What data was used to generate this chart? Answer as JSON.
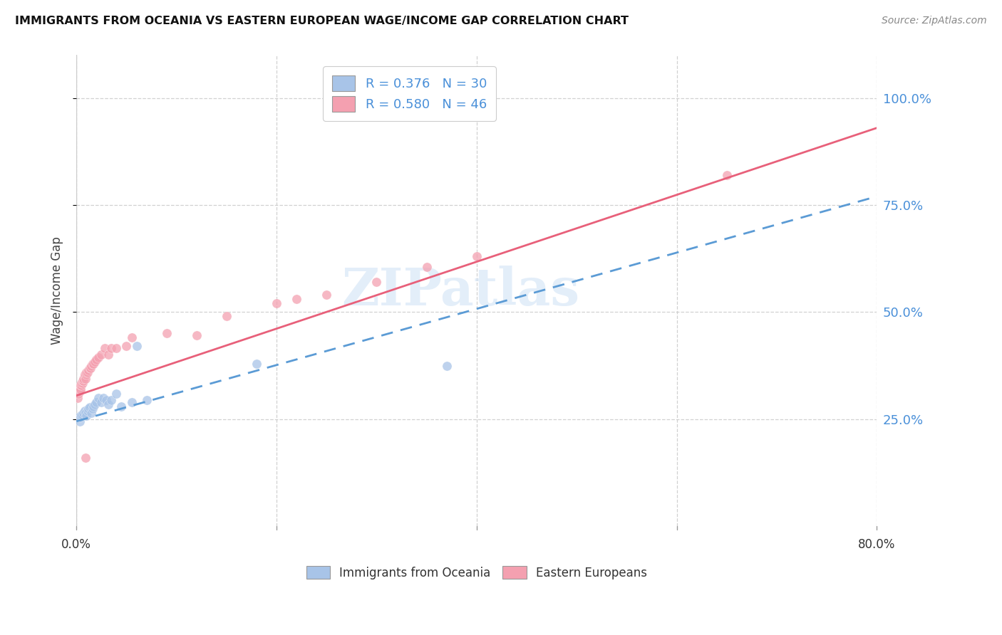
{
  "title": "IMMIGRANTS FROM OCEANIA VS EASTERN EUROPEAN WAGE/INCOME GAP CORRELATION CHART",
  "source": "Source: ZipAtlas.com",
  "ylabel": "Wage/Income Gap",
  "yticks": [
    0.25,
    0.5,
    0.75,
    1.0
  ],
  "ytick_labels": [
    "25.0%",
    "50.0%",
    "75.0%",
    "100.0%"
  ],
  "xtick_labels": [
    "0.0%",
    "80.0%"
  ],
  "legend_bottom": [
    "Immigrants from Oceania",
    "Eastern Europeans"
  ],
  "oceania_color": "#a8c4e8",
  "eastern_eu_color": "#f4a0b0",
  "oceania_line_color": "#5b9bd5",
  "eastern_eu_line_color": "#e8607a",
  "background_color": "#ffffff",
  "xmin": 0.0,
  "xmax": 0.8,
  "ymin": 0.0,
  "ymax": 1.1,
  "watermark_text": "ZIPatlas",
  "oceania_R": 0.376,
  "eastern_eu_R": 0.58,
  "oceania_N": 30,
  "eastern_eu_N": 46,
  "oceania_points": [
    [
      0.002,
      0.255
    ],
    [
      0.003,
      0.245
    ],
    [
      0.004,
      0.255
    ],
    [
      0.005,
      0.26
    ],
    [
      0.006,
      0.26
    ],
    [
      0.007,
      0.265
    ],
    [
      0.008,
      0.27
    ],
    [
      0.009,
      0.265
    ],
    [
      0.01,
      0.258
    ],
    [
      0.011,
      0.27
    ],
    [
      0.012,
      0.275
    ],
    [
      0.013,
      0.278
    ],
    [
      0.015,
      0.265
    ],
    [
      0.016,
      0.275
    ],
    [
      0.017,
      0.28
    ],
    [
      0.018,
      0.285
    ],
    [
      0.02,
      0.29
    ],
    [
      0.022,
      0.3
    ],
    [
      0.025,
      0.29
    ],
    [
      0.027,
      0.3
    ],
    [
      0.03,
      0.295
    ],
    [
      0.032,
      0.285
    ],
    [
      0.035,
      0.295
    ],
    [
      0.04,
      0.31
    ],
    [
      0.045,
      0.28
    ],
    [
      0.055,
      0.29
    ],
    [
      0.06,
      0.42
    ],
    [
      0.07,
      0.295
    ],
    [
      0.18,
      0.38
    ],
    [
      0.37,
      0.375
    ]
  ],
  "eastern_eu_points": [
    [
      0.001,
      0.3
    ],
    [
      0.002,
      0.31
    ],
    [
      0.002,
      0.315
    ],
    [
      0.003,
      0.32
    ],
    [
      0.003,
      0.325
    ],
    [
      0.004,
      0.32
    ],
    [
      0.004,
      0.33
    ],
    [
      0.005,
      0.33
    ],
    [
      0.005,
      0.335
    ],
    [
      0.006,
      0.335
    ],
    [
      0.006,
      0.34
    ],
    [
      0.007,
      0.34
    ],
    [
      0.007,
      0.345
    ],
    [
      0.008,
      0.35
    ],
    [
      0.008,
      0.355
    ],
    [
      0.009,
      0.345
    ],
    [
      0.01,
      0.355
    ],
    [
      0.01,
      0.36
    ],
    [
      0.011,
      0.36
    ],
    [
      0.012,
      0.365
    ],
    [
      0.013,
      0.37
    ],
    [
      0.014,
      0.37
    ],
    [
      0.015,
      0.375
    ],
    [
      0.016,
      0.38
    ],
    [
      0.017,
      0.38
    ],
    [
      0.018,
      0.385
    ],
    [
      0.02,
      0.39
    ],
    [
      0.022,
      0.395
    ],
    [
      0.025,
      0.4
    ],
    [
      0.028,
      0.415
    ],
    [
      0.032,
      0.4
    ],
    [
      0.035,
      0.415
    ],
    [
      0.04,
      0.415
    ],
    [
      0.05,
      0.42
    ],
    [
      0.055,
      0.44
    ],
    [
      0.09,
      0.45
    ],
    [
      0.12,
      0.445
    ],
    [
      0.15,
      0.49
    ],
    [
      0.2,
      0.52
    ],
    [
      0.22,
      0.53
    ],
    [
      0.25,
      0.54
    ],
    [
      0.3,
      0.57
    ],
    [
      0.35,
      0.605
    ],
    [
      0.4,
      0.63
    ],
    [
      0.65,
      0.82
    ],
    [
      0.009,
      0.16
    ]
  ],
  "oceania_line_x": [
    0.0,
    0.8
  ],
  "oceania_line_y": [
    0.245,
    0.77
  ],
  "eastern_eu_line_x": [
    0.0,
    0.8
  ],
  "eastern_eu_line_y": [
    0.305,
    0.93
  ]
}
